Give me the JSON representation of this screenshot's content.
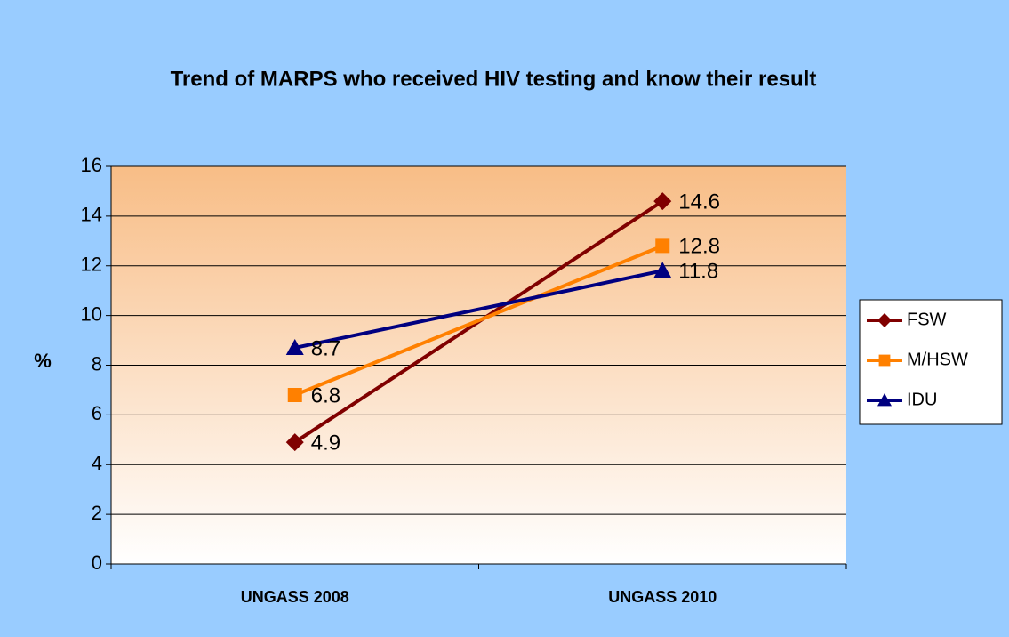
{
  "chart_data": {
    "type": "line",
    "title": "Trend of MARPS who received HIV testing and know their result",
    "ylabel": "%",
    "categories": [
      "UNGASS 2008",
      "UNGASS 2010"
    ],
    "series": [
      {
        "name": "FSW",
        "color": "#800000",
        "marker": "diamond",
        "values": [
          4.9,
          14.6
        ]
      },
      {
        "name": "M/HSW",
        "color": "#ff8000",
        "marker": "square",
        "values": [
          6.8,
          12.8
        ]
      },
      {
        "name": "IDU",
        "color": "#000080",
        "marker": "triangle",
        "values": [
          8.7,
          11.8
        ]
      }
    ],
    "ylim": [
      0,
      16
    ],
    "yticks": [
      0,
      2,
      4,
      6,
      8,
      10,
      12,
      14,
      16
    ],
    "grid": true,
    "legend": "right"
  }
}
